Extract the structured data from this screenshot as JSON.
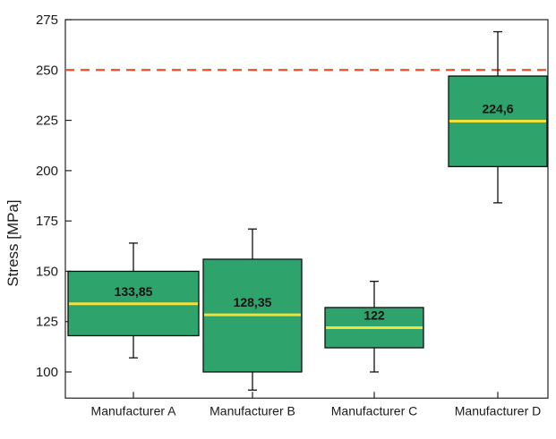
{
  "chart_data": {
    "type": "boxplot",
    "title": "",
    "xlabel": "",
    "ylabel": "Stress [MPa]",
    "ylim": [
      87,
      275
    ],
    "yticks": [
      100,
      125,
      150,
      175,
      200,
      225,
      250,
      275
    ],
    "reference_line": {
      "value": 250,
      "color": "#e8502a",
      "style": "dashed"
    },
    "colors": {
      "box_fill": "#2ea36b",
      "median": "#f3e03a",
      "whisker": "#111111"
    },
    "grid": false,
    "categories": [
      "Manufacturer A",
      "Manufacturer B",
      "Manufacturer C",
      "Manufacturer D"
    ],
    "boxes": [
      {
        "name": "Manufacturer A",
        "whisker_low": 107,
        "q1": 118,
        "median": 133.85,
        "q3": 150,
        "whisker_high": 164,
        "label": "133,85"
      },
      {
        "name": "Manufacturer B",
        "whisker_low": 91,
        "q1": 100,
        "median": 128.35,
        "q3": 156,
        "whisker_high": 171,
        "label": "128,35"
      },
      {
        "name": "Manufacturer C",
        "whisker_low": 100,
        "q1": 112,
        "median": 122,
        "q3": 132,
        "whisker_high": 145,
        "label": "122"
      },
      {
        "name": "Manufacturer D",
        "whisker_low": 184,
        "q1": 202,
        "median": 224.6,
        "q3": 247,
        "whisker_high": 269,
        "label": "224,6"
      }
    ]
  }
}
